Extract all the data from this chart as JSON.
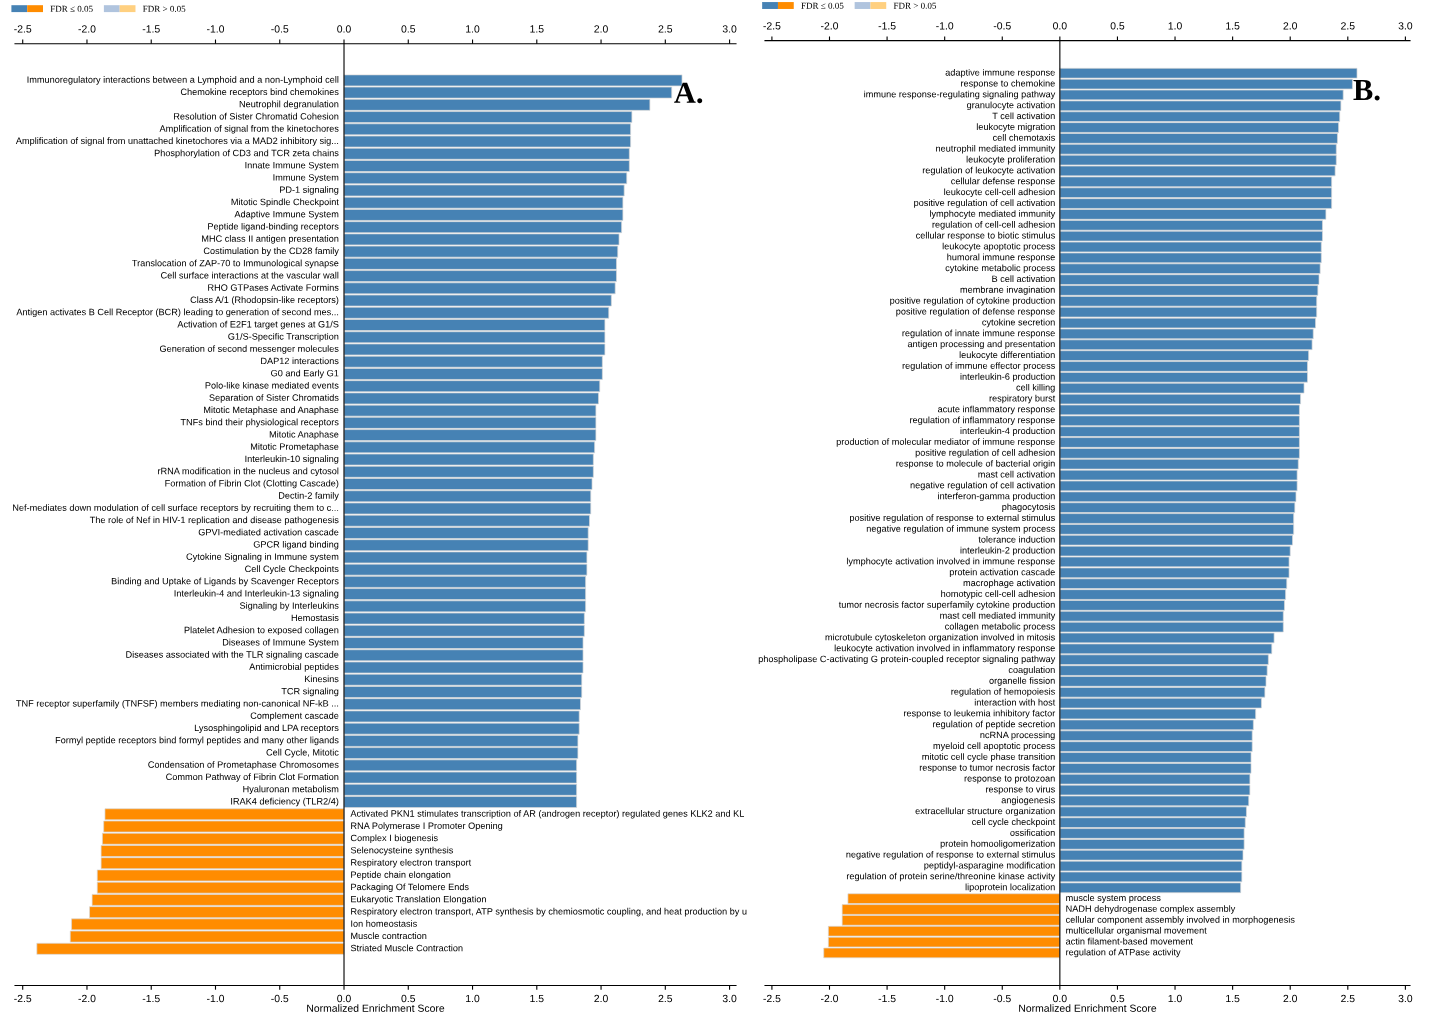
{
  "chart_data": [
    {
      "type": "bar",
      "orientation": "horizontal",
      "xlabel": "Normalized Enrichment Score",
      "annotations": [
        "A."
      ],
      "legend": "top left",
      "grid": false,
      "xlim": [
        -2.56,
        3.05
      ],
      "x2lim": [
        -2.56,
        3.05
      ],
      "xticks": [
        {
          "value": -2.5,
          "label": "-2.5"
        },
        {
          "value": -2,
          "label": "-2.0"
        },
        {
          "value": -1.5,
          "label": "-1.5"
        },
        {
          "value": -1,
          "label": "-1.0"
        },
        {
          "value": -0.5,
          "label": "-0.5"
        },
        {
          "value": 0,
          "label": "0.0"
        },
        {
          "value": 0.5,
          "label": "0.5"
        },
        {
          "value": 1,
          "label": "1.0"
        },
        {
          "value": 1.5,
          "label": "1.5"
        },
        {
          "value": 2,
          "label": "2.0"
        },
        {
          "value": 2.5,
          "label": "2.5"
        },
        {
          "value": 3,
          "label": "3.0"
        }
      ],
      "x2ticks": [
        {
          "value": -2.5,
          "label": "-2.5"
        },
        {
          "value": -2,
          "label": "-2.0"
        },
        {
          "value": -1.5,
          "label": "-1.5"
        },
        {
          "value": -1,
          "label": "-1.0"
        },
        {
          "value": -0.5,
          "label": "-0.5"
        },
        {
          "value": 0,
          "label": "0.0"
        },
        {
          "value": 0.5,
          "label": "0.5"
        },
        {
          "value": 1,
          "label": "1.0"
        },
        {
          "value": 1.5,
          "label": "1.5"
        },
        {
          "value": 2,
          "label": "2.0"
        },
        {
          "value": 2.5,
          "label": "2.5"
        },
        {
          "value": 3,
          "label": "3.0"
        }
      ],
      "categories": [
        "Immunoregulatory interactions between a Lymphoid and a non-Lymphoid cell",
        "Chemokine receptors bind chemokines",
        "Neutrophil degranulation",
        "Resolution of Sister Chromatid Cohesion",
        "Amplification of signal from the kinetochores",
        "Amplification of signal from unattached kinetochores via a MAD2 inhibitory sig...",
        "Phosphorylation of CD3 and TCR zeta chains",
        "Innate Immune System",
        "Immune System",
        "PD-1 signaling",
        "Mitotic Spindle Checkpoint",
        "Adaptive Immune System",
        "Peptide ligand-binding receptors",
        "MHC class II antigen presentation",
        "Costimulation by the CD28 family",
        "Translocation of ZAP-70 to Immunological synapse",
        "Cell surface interactions at the vascular wall",
        "RHO GTPases Activate Formins",
        "Class A/1 (Rhodopsin-like receptors)",
        "Antigen activates B Cell Receptor (BCR) leading to generation of second mes...",
        "Activation of E2F1 target genes at G1/S",
        "G1/S-Specific Transcription",
        "Generation of second messenger molecules",
        "DAP12 interactions",
        "G0 and Early G1",
        "Polo-like kinase mediated events",
        "Separation of Sister Chromatids",
        "Mitotic Metaphase and Anaphase",
        "TNFs bind their physiological receptors",
        "Mitotic Anaphase",
        "Mitotic Prometaphase",
        "Interleukin-10 signaling",
        "rRNA modification in the nucleus and cytosol",
        "Formation of Fibrin Clot (Clotting Cascade)",
        "Dectin-2 family",
        "Nef-mediates down modulation of cell surface receptors by recruiting them to c...",
        "The role of Nef in HIV-1 replication and disease pathogenesis",
        "GPVI-mediated activation cascade",
        "GPCR ligand binding",
        "Cytokine Signaling in Immune system",
        "Cell Cycle Checkpoints",
        "Binding and Uptake of Ligands by Scavenger Receptors",
        "Interleukin-4 and Interleukin-13 signaling",
        "Signaling by Interleukins",
        "Hemostasis",
        "Platelet Adhesion to exposed collagen",
        "Diseases of Immune System",
        "Diseases associated with the TLR signaling cascade",
        "Antimicrobial peptides",
        "Kinesins",
        "TCR signaling",
        "TNF receptor superfamily (TNFSF) members mediating non-canonical NF-kB ...",
        "Complement cascade",
        "Lysosphingolipid and LPA receptors",
        "Formyl peptide receptors bind formyl peptides and many other ligands",
        "Cell Cycle, Mitotic",
        "Condensation of Prometaphase Chromosomes",
        "Common Pathway of Fibrin Clot Formation",
        "Hyaluronan metabolism",
        "IRAK4 deficiency (TLR2/4)",
        "Activated PKN1 stimulates transcription of AR (androgen receptor) regulated genes KLK2 and KL",
        "RNA Polymerase I Promoter Opening",
        "Complex I biogenesis",
        "Selenocysteine synthesis",
        "Respiratory electron transport",
        "Peptide chain elongation",
        "Packaging Of Telomere Ends",
        "Eukaryotic Translation Elongation",
        "Respiratory electron transport, ATP synthesis by chemiosmotic coupling, and heat production by u",
        "Ion homeostasis",
        "Muscle contraction",
        "Striated Muscle Contraction"
      ],
      "series": [
        {
          "name": "FDR ≤ 0.05",
          "colors": [
            "#4682b4",
            "#4682b4",
            "#4682b4",
            "#4682b4",
            "#4682b4",
            "#4682b4",
            "#4682b4",
            "#4682b4",
            "#4682b4",
            "#4682b4",
            "#4682b4",
            "#4682b4",
            "#4682b4",
            "#4682b4",
            "#4682b4",
            "#4682b4",
            "#4682b4",
            "#4682b4",
            "#4682b4",
            "#4682b4",
            "#4682b4",
            "#4682b4",
            "#4682b4",
            "#4682b4",
            "#4682b4",
            "#4682b4",
            "#4682b4",
            "#4682b4",
            "#4682b4",
            "#4682b4",
            "#4682b4",
            "#4682b4",
            "#4682b4",
            "#4682b4",
            "#4682b4",
            "#4682b4",
            "#4682b4",
            "#4682b4",
            "#4682b4",
            "#4682b4",
            "#4682b4",
            "#4682b4",
            "#4682b4",
            "#4682b4",
            "#4682b4",
            "#4682b4",
            "#4682b4",
            "#4682b4",
            "#4682b4",
            "#4682b4",
            "#4682b4",
            "#4682b4",
            "#4682b4",
            "#4682b4",
            "#4682b4",
            "#4682b4",
            "#4682b4",
            "#4682b4",
            "#4682b4",
            "#4682b4",
            "#ff8c00",
            "#ff8c00",
            "#ff8c00",
            "#ff8c00",
            "#ff8c00",
            "#ff8c00",
            "#ff8c00",
            "#ff8c00",
            "#ff8c00",
            "#ff8c00",
            "#ff8c00",
            "#ff8c00"
          ],
          "values": [
            2.63,
            2.55,
            2.38,
            2.24,
            2.23,
            2.23,
            2.22,
            2.22,
            2.2,
            2.18,
            2.17,
            2.17,
            2.16,
            2.14,
            2.13,
            2.12,
            2.12,
            2.11,
            2.08,
            2.06,
            2.03,
            2.03,
            2.03,
            2.01,
            2.01,
            1.99,
            1.98,
            1.96,
            1.96,
            1.96,
            1.95,
            1.94,
            1.94,
            1.93,
            1.92,
            1.92,
            1.91,
            1.9,
            1.9,
            1.89,
            1.89,
            1.88,
            1.88,
            1.88,
            1.87,
            1.87,
            1.86,
            1.86,
            1.86,
            1.85,
            1.85,
            1.84,
            1.83,
            1.83,
            1.82,
            1.82,
            1.81,
            1.81,
            1.81,
            1.81,
            -1.86,
            -1.87,
            -1.88,
            -1.89,
            -1.89,
            -1.92,
            -1.92,
            -1.96,
            -1.98,
            -2.12,
            -2.13,
            -2.39
          ]
        },
        {
          "name": "FDR > 0.05",
          "colors": [
            "#b0c4de",
            "#b0c4de",
            "#b0c4de",
            "#b0c4de",
            "#b0c4de",
            "#b0c4de",
            "#b0c4de",
            "#b0c4de",
            "#b0c4de",
            "#b0c4de",
            "#b0c4de",
            "#b0c4de",
            "#b0c4de",
            "#b0c4de",
            "#b0c4de",
            "#b0c4de",
            "#b0c4de",
            "#b0c4de",
            "#b0c4de",
            "#b0c4de",
            "#b0c4de",
            "#b0c4de",
            "#b0c4de",
            "#b0c4de",
            "#b0c4de",
            "#b0c4de",
            "#b0c4de",
            "#b0c4de",
            "#b0c4de",
            "#b0c4de",
            "#b0c4de",
            "#b0c4de",
            "#b0c4de",
            "#b0c4de",
            "#b0c4de",
            "#b0c4de",
            "#b0c4de",
            "#b0c4de",
            "#b0c4de",
            "#b0c4de",
            "#b0c4de",
            "#b0c4de",
            "#b0c4de",
            "#b0c4de",
            "#b0c4de",
            "#b0c4de",
            "#b0c4de",
            "#b0c4de",
            "#b0c4de",
            "#b0c4de",
            "#b0c4de",
            "#b0c4de",
            "#b0c4de",
            "#b0c4de",
            "#b0c4de",
            "#b0c4de",
            "#b0c4de",
            "#b0c4de",
            "#b0c4de",
            "#b0c4de",
            "#ffd080",
            "#ffd080",
            "#ffd080",
            "#ffd080",
            "#ffd080",
            "#ffd080",
            "#ffd080",
            "#ffd080",
            "#ffd080",
            "#ffd080",
            "#ffd080",
            "#ffd080"
          ],
          "values": [
            null,
            null,
            null,
            null,
            null,
            null,
            null,
            null,
            null,
            null,
            null,
            null,
            null,
            null,
            null,
            null,
            null,
            null,
            null,
            null,
            null,
            null,
            null,
            null,
            null,
            null,
            null,
            null,
            null,
            null,
            null,
            null,
            null,
            null,
            null,
            null,
            null,
            null,
            null,
            null,
            null,
            null,
            null,
            null,
            null,
            null,
            null,
            null,
            null,
            null,
            null,
            null,
            null,
            null,
            null,
            null,
            null,
            null,
            null,
            null,
            null,
            null,
            null,
            null,
            null,
            null,
            null,
            null,
            null,
            null,
            null,
            null
          ]
        }
      ]
    },
    {
      "type": "bar",
      "orientation": "horizontal",
      "xlabel": "Normalized Enrichment Score",
      "annotations": [
        "B."
      ],
      "legend": "top left",
      "grid": false,
      "xlim": [
        -2.56,
        3.04
      ],
      "x2lim": [
        -2.56,
        3.04
      ],
      "xticks": [
        {
          "value": -2.5,
          "label": "-2.5"
        },
        {
          "value": -2,
          "label": "-2.0"
        },
        {
          "value": -1.5,
          "label": "-1.5"
        },
        {
          "value": -1,
          "label": "-1.0"
        },
        {
          "value": -0.5,
          "label": "-0.5"
        },
        {
          "value": 0,
          "label": "0.0"
        },
        {
          "value": 0.5,
          "label": "0.5"
        },
        {
          "value": 1,
          "label": "1.0"
        },
        {
          "value": 1.5,
          "label": "1.5"
        },
        {
          "value": 2,
          "label": "2.0"
        },
        {
          "value": 2.5,
          "label": "2.5"
        },
        {
          "value": 3,
          "label": "3.0"
        }
      ],
      "x2ticks": [
        {
          "value": -2.5,
          "label": "-2.5"
        },
        {
          "value": -2,
          "label": "-2.0"
        },
        {
          "value": -1.5,
          "label": "-1.5"
        },
        {
          "value": -1,
          "label": "-1.0"
        },
        {
          "value": -0.5,
          "label": "-0.5"
        },
        {
          "value": 0,
          "label": "0.0"
        },
        {
          "value": 0.5,
          "label": "0.5"
        },
        {
          "value": 1,
          "label": "1.0"
        },
        {
          "value": 1.5,
          "label": "1.5"
        },
        {
          "value": 2,
          "label": "2.0"
        },
        {
          "value": 2.5,
          "label": "2.5"
        },
        {
          "value": 3,
          "label": "3.0"
        }
      ],
      "categories": [
        "adaptive immune response",
        "response to chemokine",
        "immune response-regulating signaling pathway",
        "granulocyte activation",
        "T cell activation",
        "leukocyte migration",
        "cell chemotaxis",
        "neutrophil mediated immunity",
        "leukocyte proliferation",
        "regulation of leukocyte activation",
        "cellular defense response",
        "leukocyte cell-cell adhesion",
        "positive regulation of cell activation",
        "lymphocyte mediated immunity",
        "regulation of cell-cell adhesion",
        "cellular response to biotic stimulus",
        "leukocyte apoptotic process",
        "humoral immune response",
        "cytokine metabolic process",
        "B cell activation",
        "membrane invagination",
        "positive regulation of cytokine production",
        "positive regulation of defense response",
        "cytokine secretion",
        "regulation of innate immune response",
        "antigen processing and presentation",
        "leukocyte differentiation",
        "regulation of immune effector process",
        "interleukin-6 production",
        "cell killing",
        "respiratory burst",
        "acute inflammatory response",
        "regulation of inflammatory response",
        "interleukin-4 production",
        "production of molecular mediator of immune response",
        "positive regulation of cell adhesion",
        "response to molecule of bacterial origin",
        "mast cell activation",
        "negative regulation of cell activation",
        "interferon-gamma production",
        "phagocytosis",
        "positive regulation of response to external stimulus",
        "negative regulation of immune system process",
        "tolerance induction",
        "interleukin-2 production",
        "lymphocyte activation involved in immune response",
        "protein activation cascade",
        "macrophage activation",
        "homotypic cell-cell adhesion",
        "tumor necrosis factor superfamily cytokine production",
        "mast cell mediated immunity",
        "collagen metabolic process",
        "microtubule cytoskeleton organization involved in mitosis",
        "leukocyte activation involved in inflammatory response",
        "phospholipase C-activating G protein-coupled receptor signaling pathway",
        "coagulation",
        "organelle fission",
        "regulation of hemopoiesis",
        "interaction with host",
        "response to leukemia inhibitory factor",
        "regulation of peptide secretion",
        "ncRNA processing",
        "myeloid cell apoptotic process",
        "mitotic cell cycle phase transition",
        "response to tumor necrosis factor",
        "response to protozoan",
        "response to virus",
        "angiogenesis",
        "extracellular structure organization",
        "cell cycle checkpoint",
        "ossification",
        "protein homooligomerization",
        "negative regulation of response to external stimulus",
        "peptidyl-asparagine modification",
        "regulation of protein serine/threonine kinase activity",
        "lipoprotein localization",
        "muscle system process",
        "NADH dehydrogenase complex assembly",
        "cellular component assembly involved in morphogenesis",
        "multicellular organismal movement",
        "actin filament-based movement",
        "regulation of ATPase activity"
      ],
      "series": [
        {
          "name": "FDR ≤ 0.05",
          "colors": [
            "#4682b4",
            "#4682b4",
            "#4682b4",
            "#4682b4",
            "#4682b4",
            "#4682b4",
            "#4682b4",
            "#4682b4",
            "#4682b4",
            "#4682b4",
            "#4682b4",
            "#4682b4",
            "#4682b4",
            "#4682b4",
            "#4682b4",
            "#4682b4",
            "#4682b4",
            "#4682b4",
            "#4682b4",
            "#4682b4",
            "#4682b4",
            "#4682b4",
            "#4682b4",
            "#4682b4",
            "#4682b4",
            "#4682b4",
            "#4682b4",
            "#4682b4",
            "#4682b4",
            "#4682b4",
            "#4682b4",
            "#4682b4",
            "#4682b4",
            "#4682b4",
            "#4682b4",
            "#4682b4",
            "#4682b4",
            "#4682b4",
            "#4682b4",
            "#4682b4",
            "#4682b4",
            "#4682b4",
            "#4682b4",
            "#4682b4",
            "#4682b4",
            "#4682b4",
            "#4682b4",
            "#4682b4",
            "#4682b4",
            "#4682b4",
            "#4682b4",
            "#4682b4",
            "#4682b4",
            "#4682b4",
            "#4682b4",
            "#4682b4",
            "#4682b4",
            "#4682b4",
            "#4682b4",
            "#4682b4",
            "#4682b4",
            "#4682b4",
            "#4682b4",
            "#4682b4",
            "#4682b4",
            "#4682b4",
            "#4682b4",
            "#4682b4",
            "#4682b4",
            "#4682b4",
            "#4682b4",
            "#4682b4",
            "#4682b4",
            "#4682b4",
            "#4682b4",
            "#4682b4",
            "#ff8c00",
            "#ff8c00",
            "#ff8c00",
            "#ff8c00",
            "#ff8c00",
            "#ff8c00"
          ],
          "values": [
            2.58,
            2.54,
            2.46,
            2.44,
            2.43,
            2.42,
            2.41,
            2.4,
            2.4,
            2.39,
            2.36,
            2.36,
            2.36,
            2.31,
            2.28,
            2.28,
            2.27,
            2.27,
            2.26,
            2.25,
            2.24,
            2.23,
            2.23,
            2.22,
            2.2,
            2.19,
            2.16,
            2.15,
            2.15,
            2.12,
            2.09,
            2.08,
            2.08,
            2.08,
            2.08,
            2.08,
            2.07,
            2.06,
            2.06,
            2.05,
            2.04,
            2.03,
            2.03,
            2.02,
            2.0,
            1.99,
            1.99,
            1.97,
            1.96,
            1.95,
            1.94,
            1.94,
            1.86,
            1.84,
            1.81,
            1.8,
            1.79,
            1.78,
            1.75,
            1.7,
            1.68,
            1.67,
            1.67,
            1.66,
            1.66,
            1.65,
            1.65,
            1.64,
            1.62,
            1.61,
            1.6,
            1.6,
            1.59,
            1.58,
            1.58,
            1.57,
            -1.84,
            -1.89,
            -1.89,
            -2.01,
            -2.01,
            -2.05
          ]
        },
        {
          "name": "FDR > 0.05",
          "colors": [
            "#b0c4de",
            "#b0c4de",
            "#b0c4de",
            "#b0c4de",
            "#b0c4de",
            "#b0c4de",
            "#b0c4de",
            "#b0c4de",
            "#b0c4de",
            "#b0c4de",
            "#b0c4de",
            "#b0c4de",
            "#b0c4de",
            "#b0c4de",
            "#b0c4de",
            "#b0c4de",
            "#b0c4de",
            "#b0c4de",
            "#b0c4de",
            "#b0c4de",
            "#b0c4de",
            "#b0c4de",
            "#b0c4de",
            "#b0c4de",
            "#b0c4de",
            "#b0c4de",
            "#b0c4de",
            "#b0c4de",
            "#b0c4de",
            "#b0c4de",
            "#b0c4de",
            "#b0c4de",
            "#b0c4de",
            "#b0c4de",
            "#b0c4de",
            "#b0c4de",
            "#b0c4de",
            "#b0c4de",
            "#b0c4de",
            "#b0c4de",
            "#b0c4de",
            "#b0c4de",
            "#b0c4de",
            "#b0c4de",
            "#b0c4de",
            "#b0c4de",
            "#b0c4de",
            "#b0c4de",
            "#b0c4de",
            "#b0c4de",
            "#b0c4de",
            "#b0c4de",
            "#b0c4de",
            "#b0c4de",
            "#b0c4de",
            "#b0c4de",
            "#b0c4de",
            "#b0c4de",
            "#b0c4de",
            "#b0c4de",
            "#b0c4de",
            "#b0c4de",
            "#b0c4de",
            "#b0c4de",
            "#b0c4de",
            "#b0c4de",
            "#b0c4de",
            "#b0c4de",
            "#b0c4de",
            "#b0c4de",
            "#b0c4de",
            "#b0c4de",
            "#b0c4de",
            "#b0c4de",
            "#b0c4de",
            "#b0c4de",
            "#ffd080",
            "#ffd080",
            "#ffd080",
            "#ffd080",
            "#ffd080",
            "#ffd080"
          ],
          "values": [
            null,
            null,
            null,
            null,
            null,
            null,
            null,
            null,
            null,
            null,
            null,
            null,
            null,
            null,
            null,
            null,
            null,
            null,
            null,
            null,
            null,
            null,
            null,
            null,
            null,
            null,
            null,
            null,
            null,
            null,
            null,
            null,
            null,
            null,
            null,
            null,
            null,
            null,
            null,
            null,
            null,
            null,
            null,
            null,
            null,
            null,
            null,
            null,
            null,
            null,
            null,
            null,
            null,
            null,
            null,
            null,
            null,
            null,
            null,
            null,
            null,
            null,
            null,
            null,
            null,
            null,
            null,
            null,
            null,
            null,
            null,
            null,
            null,
            null,
            null,
            null,
            null,
            null,
            null,
            null,
            null,
            null
          ]
        }
      ]
    }
  ]
}
